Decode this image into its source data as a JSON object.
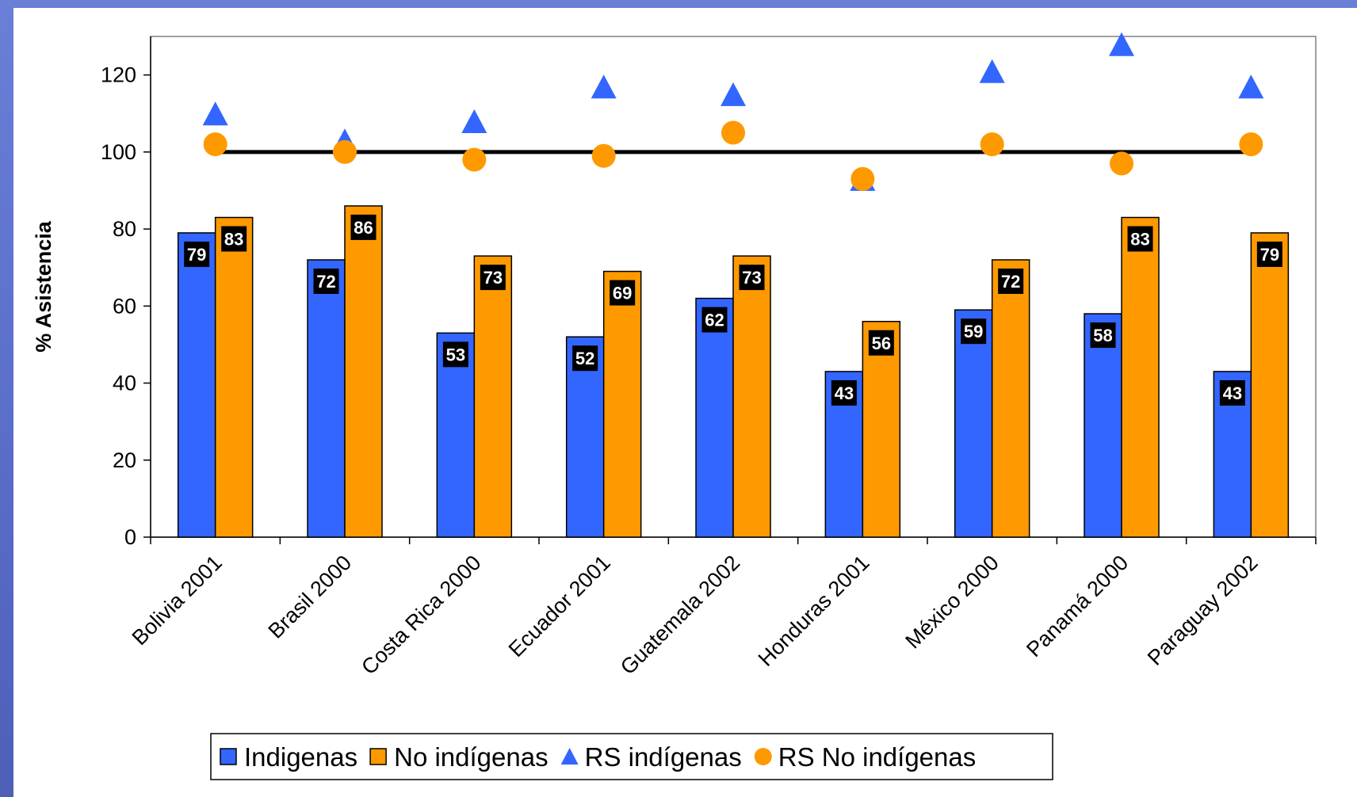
{
  "chart_data": {
    "type": "bar",
    "categories": [
      "Bolivia 2001",
      "Brasil 2000",
      "Costa Rica 2000",
      "Ecuador 2001",
      "Guatemala 2002",
      "Honduras 2001",
      "México 2000",
      "Panamá 2000",
      "Paraguay 2002"
    ],
    "series": [
      {
        "name": "Indigenas",
        "type": "bar",
        "color": "#3366ff",
        "values": [
          79,
          72,
          53,
          52,
          62,
          43,
          59,
          58,
          43
        ]
      },
      {
        "name": "No indígenas",
        "type": "bar",
        "color": "#ff9900",
        "values": [
          83,
          86,
          73,
          69,
          73,
          56,
          72,
          83,
          79
        ]
      },
      {
        "name": "RS indígenas",
        "type": "scatter",
        "marker": "triangle",
        "color": "#3366ff",
        "values": [
          110,
          103,
          108,
          117,
          115,
          93,
          121,
          128,
          117
        ]
      },
      {
        "name": "RS No indígenas",
        "type": "scatter",
        "marker": "circle",
        "color": "#ff9900",
        "values": [
          102,
          100,
          98,
          99,
          105,
          93,
          102,
          97,
          102
        ]
      }
    ],
    "reference_line": 100,
    "xlabel": "",
    "ylabel": "% Asistencia",
    "ylim": [
      0,
      130
    ],
    "yticks": [
      0,
      20,
      40,
      60,
      80,
      100,
      120
    ],
    "legend_position": "bottom",
    "grid": false
  }
}
